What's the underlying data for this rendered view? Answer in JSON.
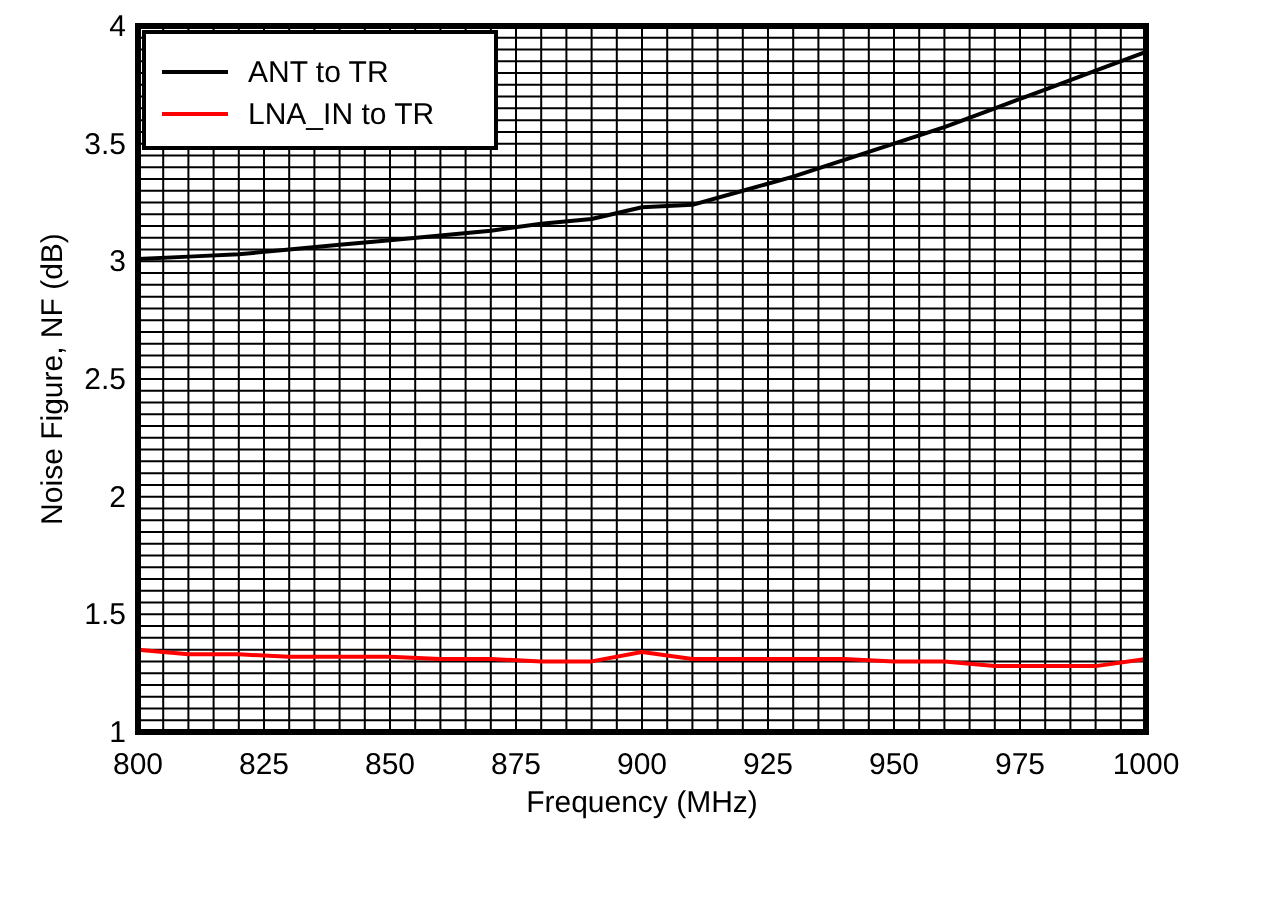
{
  "chart_data": {
    "type": "line",
    "xlabel": "Frequency (MHz)",
    "ylabel": "Noise Figure, NF (dB)",
    "x": [
      800,
      810,
      820,
      830,
      840,
      850,
      860,
      870,
      880,
      890,
      900,
      910,
      920,
      930,
      940,
      950,
      960,
      970,
      980,
      990,
      1000
    ],
    "series": [
      {
        "name": "ANT to TR",
        "color": "#000000",
        "values": [
          3.01,
          3.02,
          3.03,
          3.05,
          3.07,
          3.09,
          3.11,
          3.13,
          3.16,
          3.18,
          3.23,
          3.24,
          3.3,
          3.36,
          3.43,
          3.5,
          3.57,
          3.65,
          3.73,
          3.81,
          3.89
        ]
      },
      {
        "name": "LNA_IN to TR",
        "color": "#ff0000",
        "values": [
          1.35,
          1.33,
          1.33,
          1.32,
          1.32,
          1.32,
          1.31,
          1.31,
          1.3,
          1.3,
          1.34,
          1.31,
          1.31,
          1.31,
          1.31,
          1.3,
          1.3,
          1.28,
          1.28,
          1.28,
          1.31
        ]
      }
    ],
    "xlim": [
      800,
      1000
    ],
    "xticks": [
      800,
      825,
      850,
      875,
      900,
      925,
      950,
      975,
      1000
    ],
    "ylim": [
      1,
      4
    ],
    "yticks": [
      1,
      1.5,
      2,
      2.5,
      3,
      3.5,
      4
    ],
    "grid": true,
    "legend": "top left",
    "marker": "none",
    "line_style": "solid"
  }
}
